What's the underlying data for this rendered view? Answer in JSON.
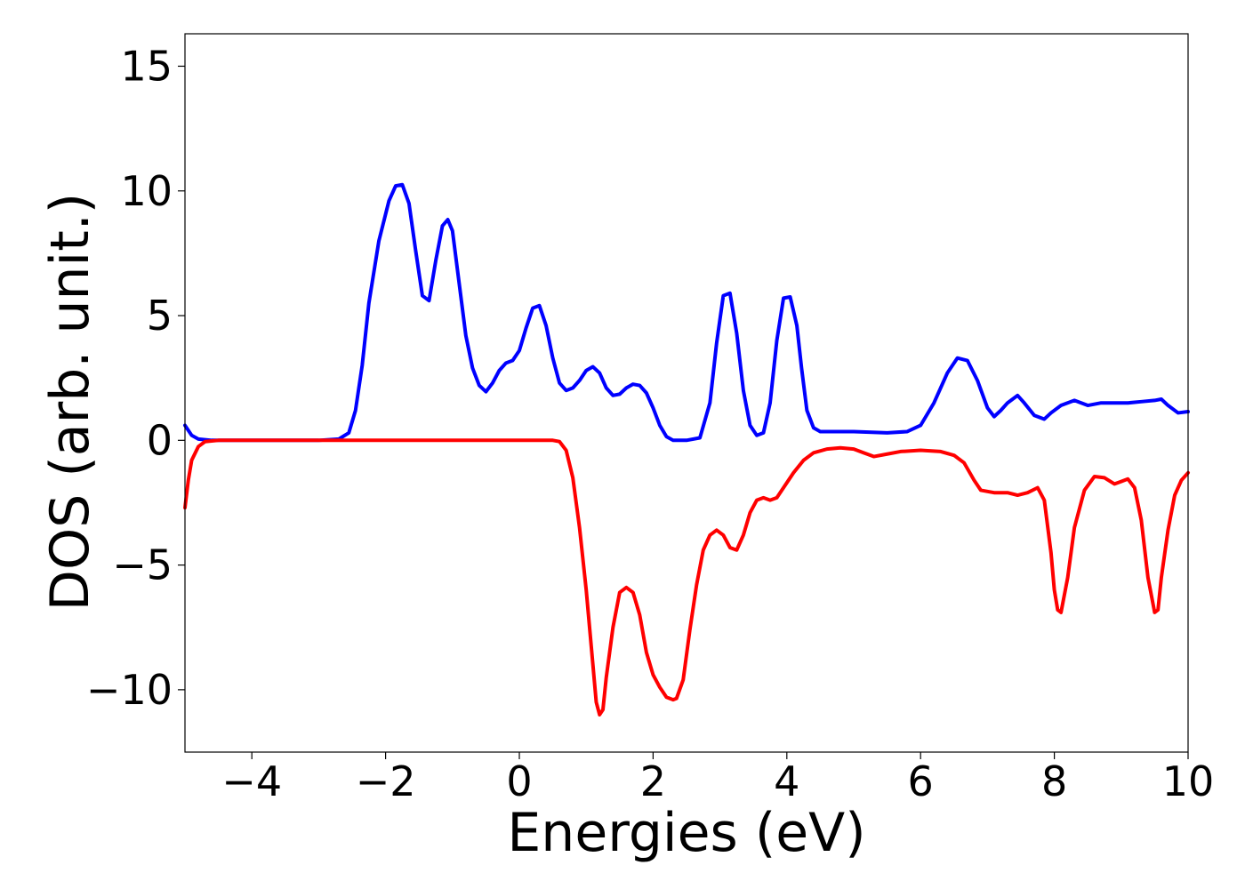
{
  "chart_data": {
    "type": "line",
    "xlabel": "Energies (eV)",
    "ylabel": "DOS (arb. unit.)",
    "xlim": [
      -5,
      10
    ],
    "ylim": [
      -12.5,
      16.3
    ],
    "xticks": [
      -4,
      -2,
      0,
      2,
      4,
      6,
      8,
      10
    ],
    "xtick_labels": [
      "−4",
      "−2",
      "0",
      "2",
      "4",
      "6",
      "8",
      "10"
    ],
    "yticks": [
      -10,
      -5,
      0,
      5,
      10,
      15
    ],
    "ytick_labels": [
      "−10",
      "−5",
      "0",
      "5",
      "10",
      "15"
    ],
    "grid": false,
    "series": [
      {
        "color": "#0000ff",
        "x": [
          -5.0,
          -4.9,
          -4.8,
          -4.6,
          -4.0,
          -3.0,
          -2.7,
          -2.55,
          -2.45,
          -2.35,
          -2.25,
          -2.1,
          -1.95,
          -1.85,
          -1.75,
          -1.65,
          -1.55,
          -1.45,
          -1.35,
          -1.25,
          -1.15,
          -1.07,
          -1.0,
          -0.9,
          -0.8,
          -0.7,
          -0.6,
          -0.5,
          -0.4,
          -0.3,
          -0.2,
          -0.1,
          0.0,
          0.1,
          0.2,
          0.3,
          0.4,
          0.5,
          0.6,
          0.7,
          0.8,
          0.9,
          1.0,
          1.1,
          1.2,
          1.3,
          1.4,
          1.5,
          1.6,
          1.7,
          1.8,
          1.9,
          2.0,
          2.1,
          2.2,
          2.3,
          2.5,
          2.7,
          2.85,
          2.95,
          3.05,
          3.15,
          3.25,
          3.35,
          3.45,
          3.55,
          3.65,
          3.75,
          3.85,
          3.95,
          4.05,
          4.15,
          4.22,
          4.3,
          4.4,
          4.5,
          4.6,
          4.8,
          5.0,
          5.5,
          5.8,
          6.0,
          6.2,
          6.4,
          6.55,
          6.7,
          6.85,
          7.0,
          7.1,
          7.2,
          7.3,
          7.45,
          7.55,
          7.7,
          7.85,
          7.95,
          8.1,
          8.3,
          8.5,
          8.7,
          8.9,
          9.1,
          9.3,
          9.5,
          9.6,
          9.7,
          9.85,
          10.0
        ],
        "y": [
          0.6,
          0.2,
          0.05,
          0.0,
          0.0,
          0.0,
          0.05,
          0.3,
          1.2,
          3.0,
          5.5,
          8.0,
          9.6,
          10.2,
          10.25,
          9.5,
          7.6,
          5.8,
          5.6,
          7.2,
          8.6,
          8.85,
          8.4,
          6.3,
          4.2,
          2.9,
          2.2,
          1.95,
          2.3,
          2.8,
          3.1,
          3.2,
          3.6,
          4.5,
          5.3,
          5.4,
          4.6,
          3.3,
          2.3,
          2.0,
          2.1,
          2.4,
          2.8,
          2.95,
          2.7,
          2.1,
          1.8,
          1.85,
          2.1,
          2.25,
          2.2,
          1.9,
          1.3,
          0.6,
          0.15,
          0.0,
          0.0,
          0.1,
          1.5,
          3.9,
          5.8,
          5.9,
          4.3,
          2.0,
          0.6,
          0.2,
          0.3,
          1.5,
          4.0,
          5.7,
          5.75,
          4.6,
          2.9,
          1.2,
          0.5,
          0.35,
          0.35,
          0.35,
          0.35,
          0.3,
          0.35,
          0.6,
          1.5,
          2.7,
          3.3,
          3.2,
          2.4,
          1.3,
          0.95,
          1.2,
          1.5,
          1.8,
          1.5,
          1.0,
          0.85,
          1.1,
          1.4,
          1.6,
          1.4,
          1.5,
          1.5,
          1.5,
          1.55,
          1.6,
          1.65,
          1.4,
          1.1,
          1.15
        ]
      },
      {
        "color": "#ff0000",
        "x": [
          -5.0,
          -4.95,
          -4.9,
          -4.8,
          -4.7,
          -4.5,
          -4.0,
          -2.0,
          0.0,
          0.5,
          0.6,
          0.7,
          0.8,
          0.9,
          1.0,
          1.1,
          1.15,
          1.2,
          1.25,
          1.3,
          1.4,
          1.5,
          1.6,
          1.7,
          1.8,
          1.9,
          2.0,
          2.1,
          2.2,
          2.3,
          2.35,
          2.45,
          2.55,
          2.65,
          2.75,
          2.85,
          2.95,
          3.05,
          3.15,
          3.25,
          3.35,
          3.45,
          3.55,
          3.65,
          3.75,
          3.85,
          3.95,
          4.1,
          4.25,
          4.4,
          4.6,
          4.8,
          5.0,
          5.15,
          5.3,
          5.5,
          5.7,
          6.0,
          6.3,
          6.5,
          6.65,
          6.8,
          6.9,
          7.1,
          7.3,
          7.45,
          7.6,
          7.75,
          7.85,
          7.95,
          8.0,
          8.05,
          8.1,
          8.2,
          8.3,
          8.45,
          8.6,
          8.75,
          8.9,
          9.0,
          9.1,
          9.2,
          9.3,
          9.4,
          9.5,
          9.55,
          9.6,
          9.7,
          9.8,
          9.9,
          10.0
        ],
        "y": [
          -2.7,
          -1.6,
          -0.8,
          -0.25,
          -0.05,
          0.0,
          0.0,
          0.0,
          0.0,
          0.0,
          -0.05,
          -0.4,
          -1.5,
          -3.5,
          -6.0,
          -9.0,
          -10.5,
          -11.0,
          -10.8,
          -9.5,
          -7.5,
          -6.1,
          -5.9,
          -6.1,
          -7.0,
          -8.5,
          -9.4,
          -9.9,
          -10.3,
          -10.4,
          -10.35,
          -9.6,
          -7.6,
          -5.8,
          -4.4,
          -3.8,
          -3.6,
          -3.8,
          -4.3,
          -4.4,
          -3.8,
          -2.9,
          -2.4,
          -2.3,
          -2.4,
          -2.3,
          -1.9,
          -1.3,
          -0.8,
          -0.5,
          -0.35,
          -0.3,
          -0.35,
          -0.5,
          -0.65,
          -0.55,
          -0.45,
          -0.4,
          -0.45,
          -0.6,
          -0.9,
          -1.6,
          -2.0,
          -2.1,
          -2.1,
          -2.2,
          -2.1,
          -1.9,
          -2.4,
          -4.5,
          -6.0,
          -6.8,
          -6.9,
          -5.5,
          -3.5,
          -2.0,
          -1.45,
          -1.5,
          -1.75,
          -1.65,
          -1.55,
          -1.9,
          -3.2,
          -5.5,
          -6.9,
          -6.8,
          -5.5,
          -3.6,
          -2.2,
          -1.6,
          -1.3
        ]
      }
    ]
  }
}
